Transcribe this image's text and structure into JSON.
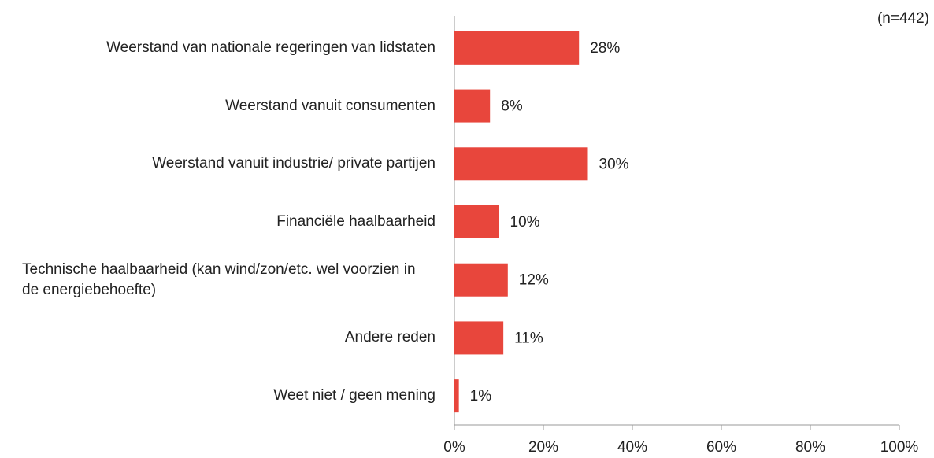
{
  "chart_data": {
    "type": "bar",
    "orientation": "horizontal",
    "annotation": "(n=442)",
    "categories": [
      "Weerstand van nationale regeringen van lidstaten",
      "Weerstand vanuit consumenten",
      "Weerstand vanuit industrie/ private partijen",
      "Financiële haalbaarheid",
      "Technische haalbaarheid (kan wind/zon/etc. wel voorzien in de energiebehoefte)",
      "Andere reden",
      "Weet niet / geen mening"
    ],
    "values": [
      28,
      8,
      30,
      10,
      12,
      11,
      1
    ],
    "value_labels": [
      "28%",
      "8%",
      "30%",
      "10%",
      "12%",
      "11%",
      "1%"
    ],
    "color": "#e8463c",
    "xlim": [
      0,
      100
    ],
    "xticks": [
      {
        "value": 0,
        "label": "0%"
      },
      {
        "value": 20,
        "label": "20%"
      },
      {
        "value": 40,
        "label": "40%"
      },
      {
        "value": 60,
        "label": "60%"
      },
      {
        "value": 80,
        "label": "80%"
      },
      {
        "value": 100,
        "label": "100%"
      }
    ],
    "grid": false
  }
}
